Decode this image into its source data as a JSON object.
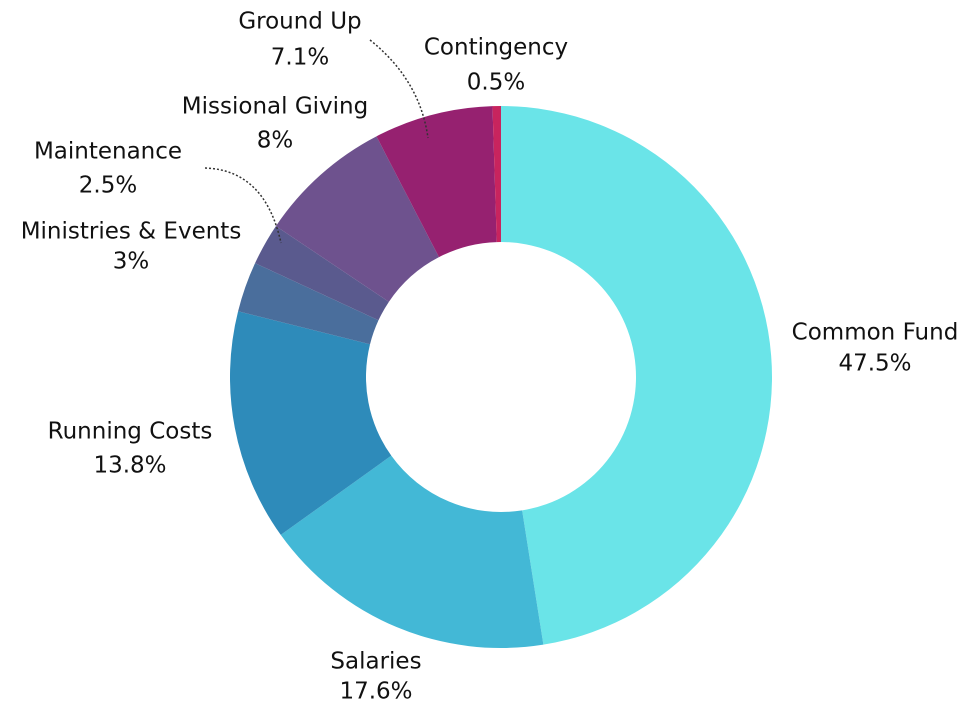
{
  "chart_data": {
    "type": "donut",
    "categories": [
      "Common Fund",
      "Salaries",
      "Running Costs",
      "Ministries & Events",
      "Maintenance",
      "Missional Giving",
      "Ground Up",
      "Contingency"
    ],
    "values": [
      47.5,
      17.6,
      13.8,
      3,
      2.5,
      8,
      7.1,
      0.5
    ],
    "value_labels": [
      "47.5%",
      "17.6%",
      "13.8%",
      "3%",
      "2.5%",
      "8%",
      "7.1%",
      "0.5%"
    ],
    "colors": [
      "#6ae4e8",
      "#43b8d6",
      "#2e8bba",
      "#4a6e9c",
      "#5a5a8e",
      "#6e528e",
      "#962170",
      "#c8245e"
    ]
  }
}
